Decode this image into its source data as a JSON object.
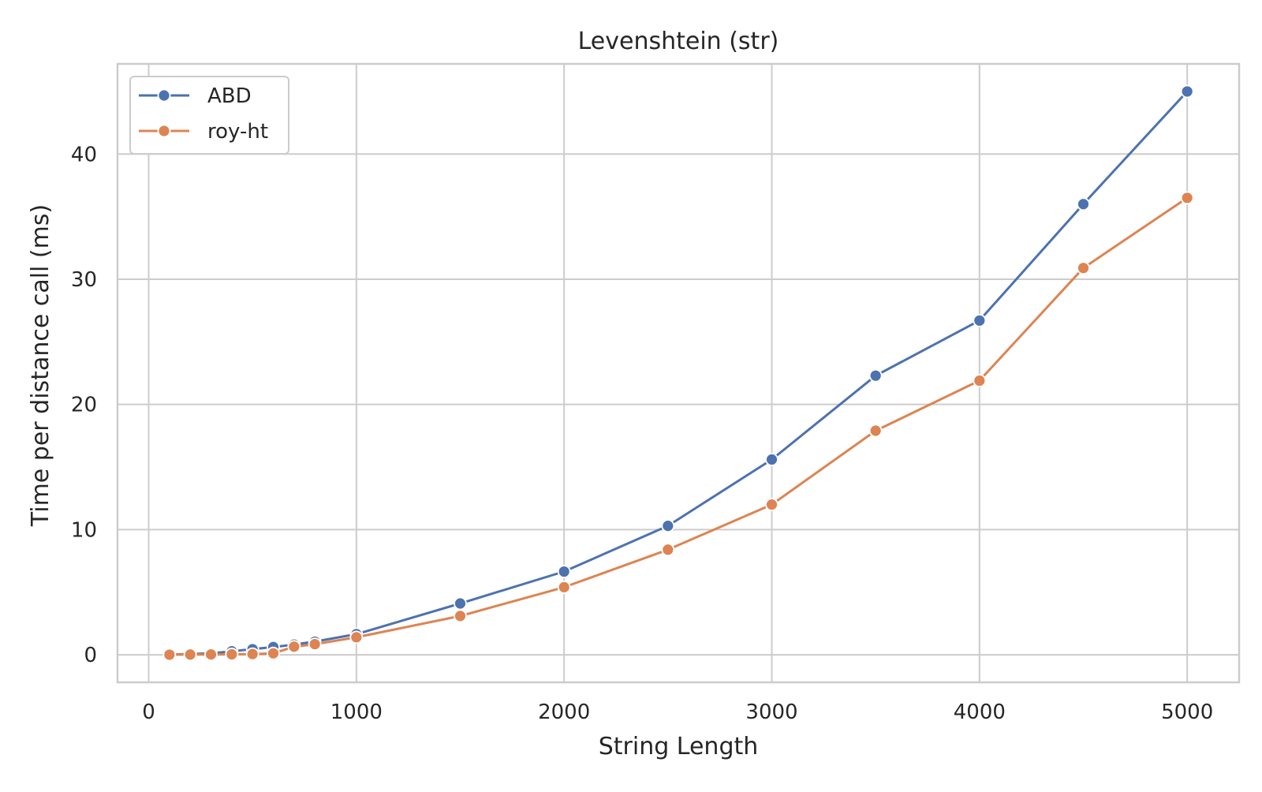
{
  "chart_data": {
    "type": "line",
    "title": "Levenshtein (str)",
    "xlabel": "String Length",
    "ylabel": "Time per distance call (ms)",
    "xlim": [
      -150,
      5250
    ],
    "ylim": [
      -2.2,
      47.2
    ],
    "xticks": [
      0,
      1000,
      2000,
      3000,
      4000,
      5000
    ],
    "yticks": [
      0,
      10,
      20,
      30,
      40
    ],
    "grid": true,
    "legend_position": "top-left",
    "x": [
      100,
      200,
      300,
      400,
      500,
      600,
      700,
      800,
      1000,
      1500,
      2000,
      2500,
      3000,
      3500,
      4000,
      4500,
      5000
    ],
    "series": [
      {
        "name": "ABD",
        "color": "#4c72b0",
        "marker": "circle",
        "values": [
          0.02,
          0.06,
          0.12,
          0.28,
          0.45,
          0.62,
          0.82,
          1.05,
          1.65,
          4.1,
          6.65,
          10.3,
          15.6,
          22.3,
          26.7,
          36.0,
          45.0
        ]
      },
      {
        "name": "roy-ht",
        "color": "#dd8452",
        "marker": "circle",
        "values": [
          0.01,
          0.02,
          0.03,
          0.04,
          0.06,
          0.12,
          0.65,
          0.85,
          1.4,
          3.1,
          5.4,
          8.4,
          12.0,
          17.9,
          21.9,
          30.9,
          36.5
        ]
      }
    ]
  }
}
